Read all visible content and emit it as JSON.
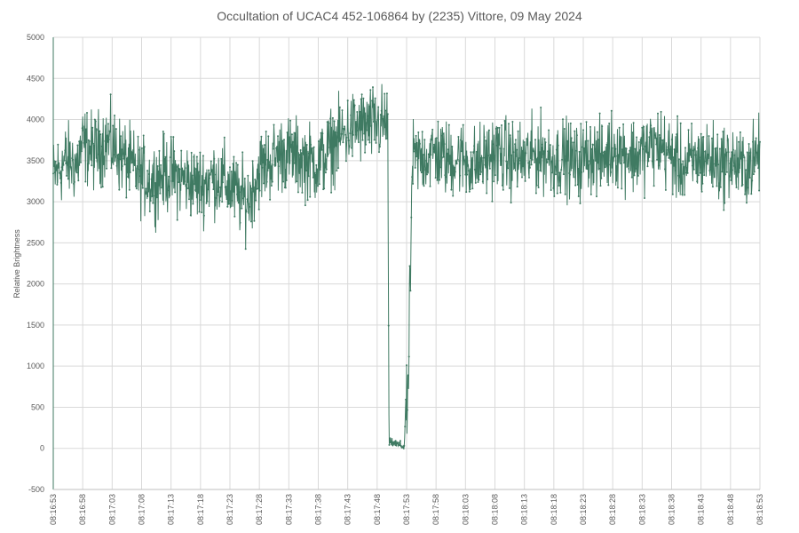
{
  "chart_data": {
    "type": "line",
    "title": "Occultation of UCAC4 452-106864 by (2235) Vittore, 09 May 2024",
    "xlabel": "",
    "ylabel": "Relative Brightness",
    "ylim": [
      -500,
      5000
    ],
    "yticks": [
      -500,
      0,
      500,
      1000,
      1500,
      2000,
      2500,
      3000,
      3500,
      4000,
      4500,
      5000
    ],
    "xlim_seconds": [
      0,
      120
    ],
    "xticks": [
      "08:16:53",
      "08:16:58",
      "08:17:03",
      "08:17:08",
      "08:17:13",
      "08:17:18",
      "08:17:23",
      "08:17:28",
      "08:17:33",
      "08:17:38",
      "08:17:43",
      "08:17:48",
      "08:17:53",
      "08:17:58",
      "08:18:03",
      "08:18:08",
      "08:18:13",
      "08:18:18",
      "08:18:23",
      "08:18:28",
      "08:18:33",
      "08:18:38",
      "08:18:43",
      "08:18:48",
      "08:18:53"
    ],
    "grid": true,
    "legend": "none",
    "series": [
      {
        "color": "#3f7a62",
        "profile": [
          [
            0,
            3300
          ],
          [
            2,
            3500
          ],
          [
            4,
            3450
          ],
          [
            5,
            3700
          ],
          [
            7,
            3600
          ],
          [
            9,
            3750
          ],
          [
            11,
            3600
          ],
          [
            13,
            3450
          ],
          [
            15,
            3300
          ],
          [
            17,
            3250
          ],
          [
            19,
            3350
          ],
          [
            21,
            3300
          ],
          [
            23,
            3250
          ],
          [
            25,
            3200
          ],
          [
            27,
            3300
          ],
          [
            29,
            3250
          ],
          [
            31,
            3100
          ],
          [
            33,
            3000
          ],
          [
            35,
            3400
          ],
          [
            37,
            3500
          ],
          [
            39,
            3600
          ],
          [
            41,
            3550
          ],
          [
            43,
            3500
          ],
          [
            45,
            3450
          ],
          [
            47,
            3650
          ],
          [
            49,
            3800
          ],
          [
            51,
            3900
          ],
          [
            56.8,
            3950
          ],
          [
            57.0,
            80
          ],
          [
            59.6,
            20
          ],
          [
            59.8,
            400
          ],
          [
            60.2,
            480
          ],
          [
            61.0,
            3500
          ],
          [
            63,
            3550
          ],
          [
            65,
            3600
          ],
          [
            67,
            3500
          ],
          [
            69,
            3550
          ],
          [
            71,
            3450
          ],
          [
            73,
            3500
          ],
          [
            75,
            3600
          ],
          [
            77,
            3550
          ],
          [
            79,
            3500
          ],
          [
            81,
            3550
          ],
          [
            83,
            3600
          ],
          [
            85,
            3500
          ],
          [
            87,
            3550
          ],
          [
            89,
            3450
          ],
          [
            91,
            3600
          ],
          [
            93,
            3500
          ],
          [
            95,
            3650
          ],
          [
            97,
            3600
          ],
          [
            99,
            3550
          ],
          [
            101,
            3650
          ],
          [
            103,
            3700
          ],
          [
            105,
            3550
          ],
          [
            107,
            3400
          ],
          [
            109,
            3500
          ],
          [
            111,
            3550
          ],
          [
            113,
            3450
          ],
          [
            115,
            3500
          ],
          [
            117,
            3400
          ],
          [
            119,
            3500
          ],
          [
            120,
            3600
          ]
        ],
        "noise_amplitude": 350
      }
    ]
  }
}
